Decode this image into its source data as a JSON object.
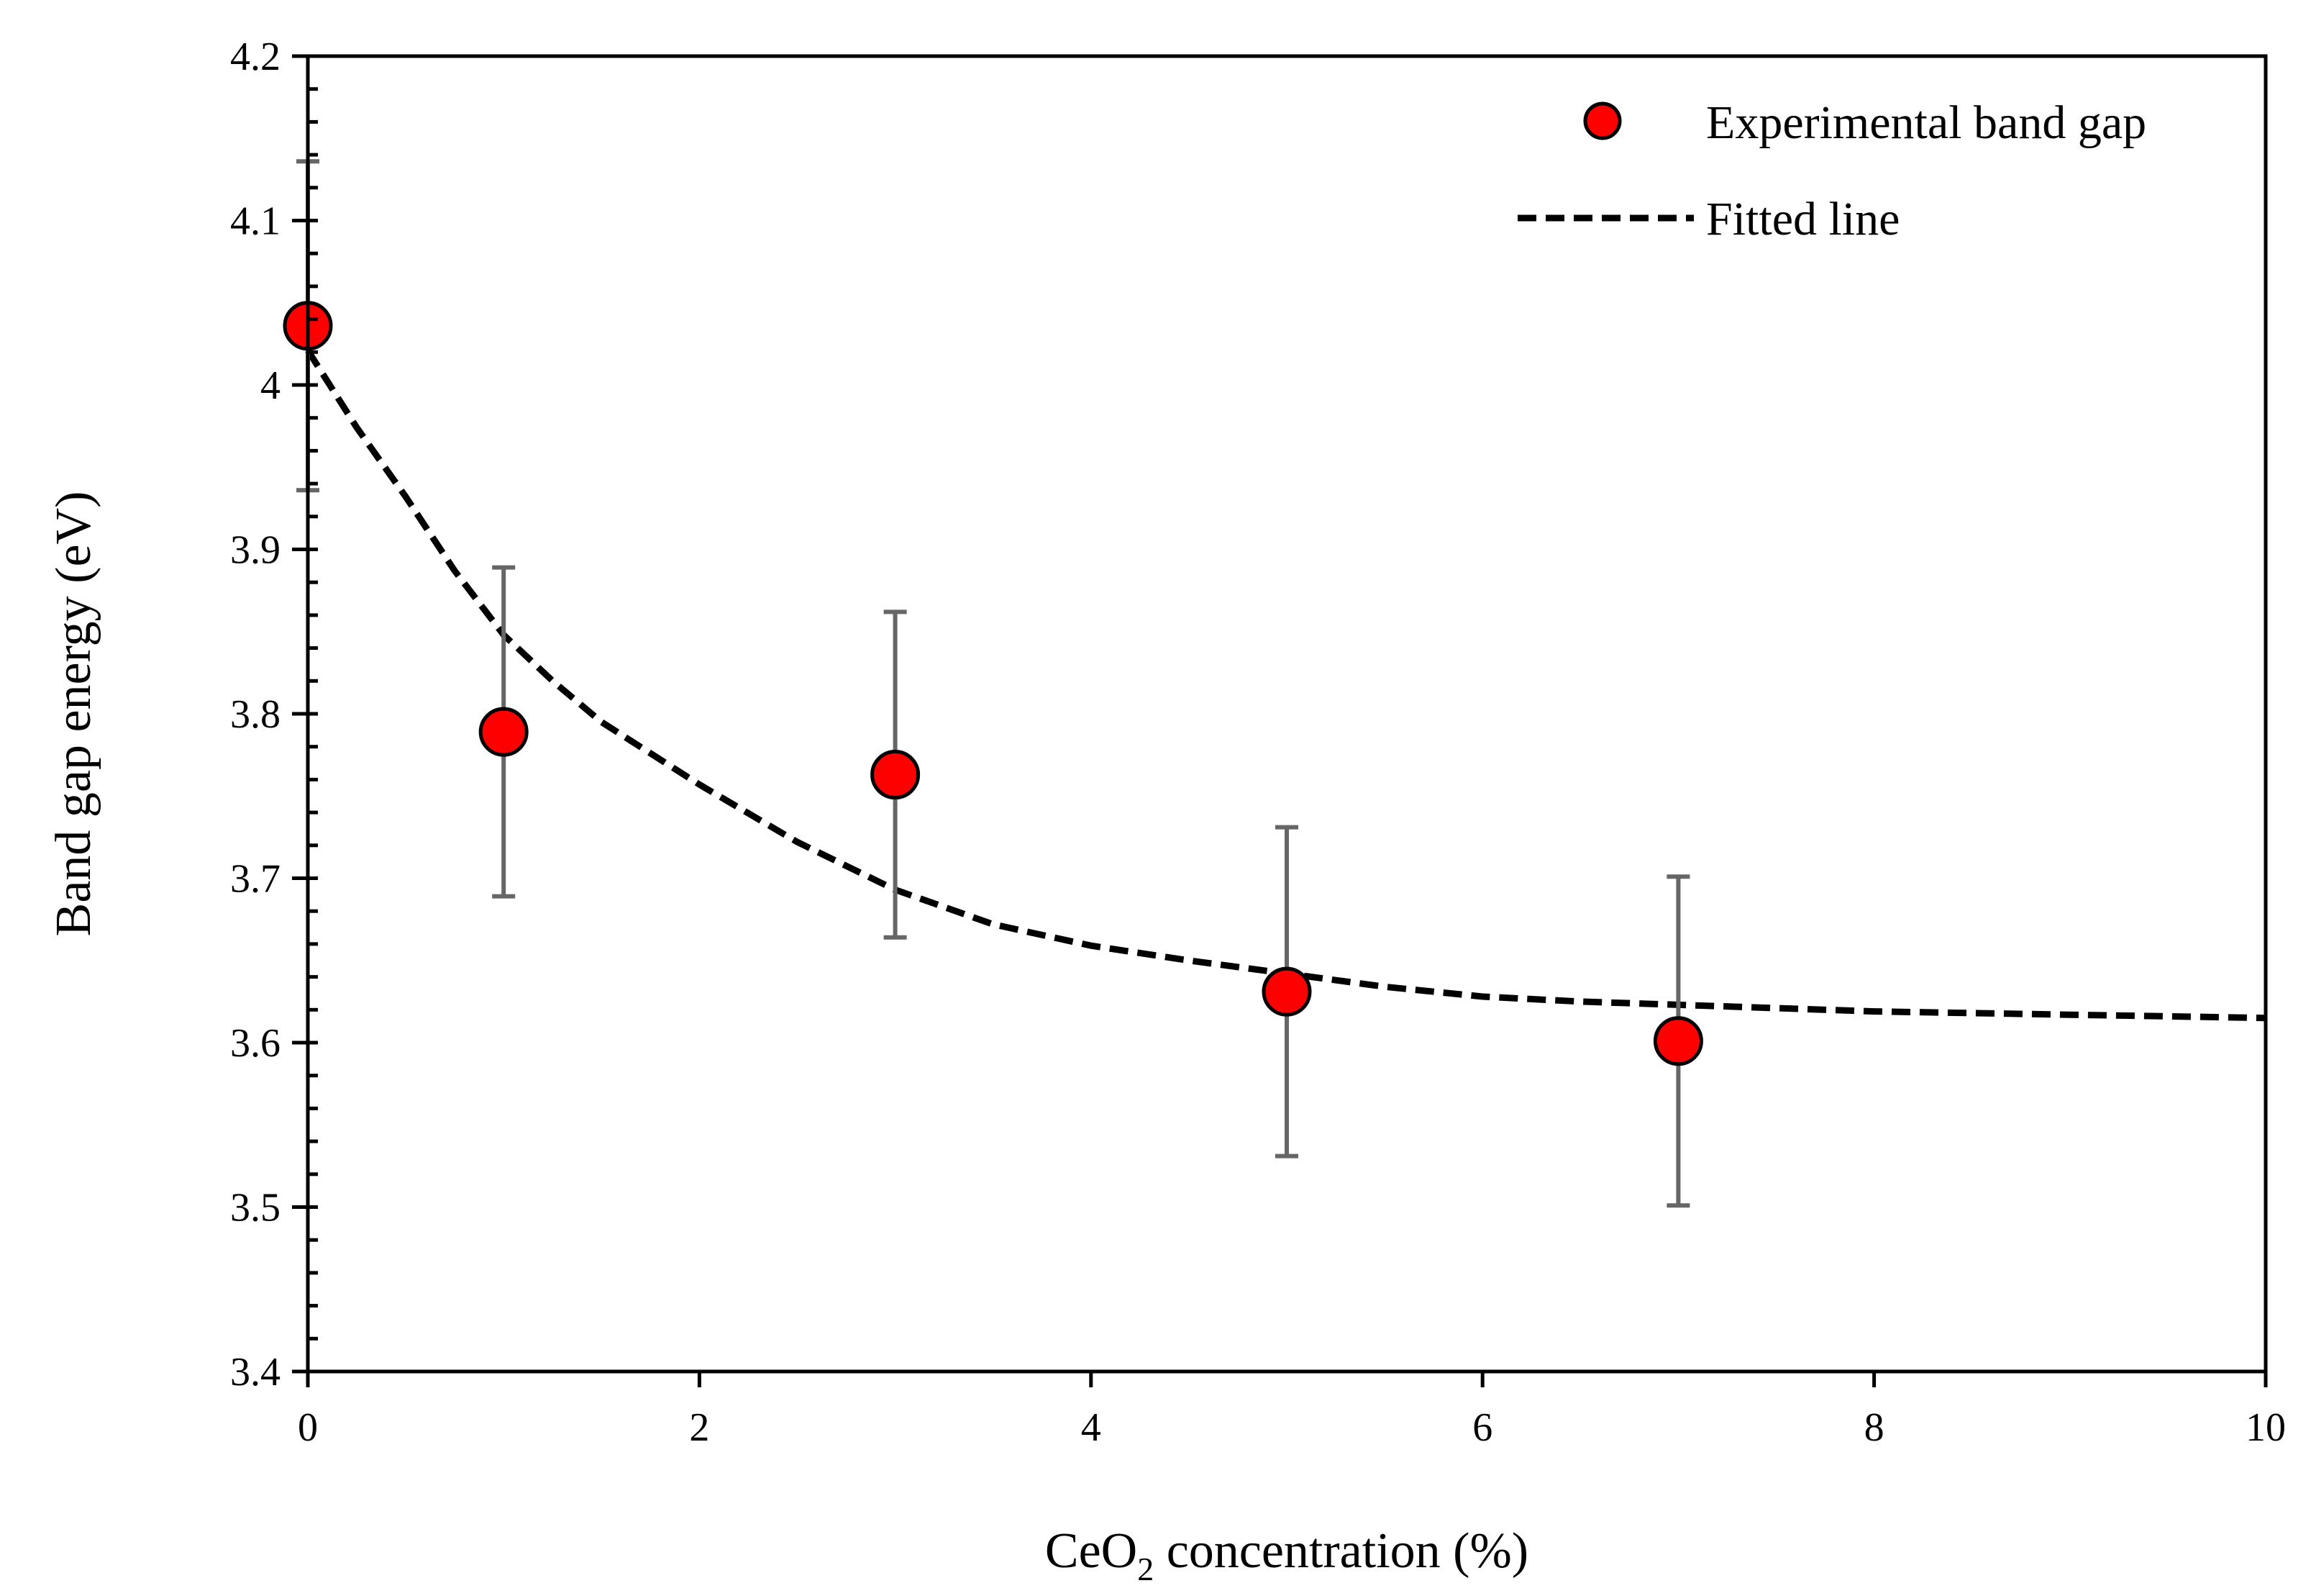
{
  "chart_data": {
    "type": "scatter",
    "title": "",
    "xlabel": {
      "prefix": "CeO",
      "subscript": "2",
      "suffix": " concentration (%)"
    },
    "ylabel": "Band gap energy (eV)",
    "xlim": [
      0,
      10
    ],
    "ylim": [
      3.4,
      4.2
    ],
    "grid": false,
    "x_ticks": [
      {
        "value": 0,
        "label": "0"
      },
      {
        "value": 2,
        "label": "2"
      },
      {
        "value": 4,
        "label": "4"
      },
      {
        "value": 6,
        "label": "6"
      },
      {
        "value": 8,
        "label": "8"
      },
      {
        "value": 10,
        "label": "10"
      }
    ],
    "y_ticks": [
      {
        "value": 3.4,
        "label": "3.4"
      },
      {
        "value": 3.5,
        "label": "3.5"
      },
      {
        "value": 3.6,
        "label": "3.6"
      },
      {
        "value": 3.7,
        "label": "3.7"
      },
      {
        "value": 3.8,
        "label": "3.8"
      },
      {
        "value": 3.9,
        "label": "3.9"
      },
      {
        "value": 4.0,
        "label": "4"
      },
      {
        "value": 4.1,
        "label": "4.1"
      },
      {
        "value": 4.2,
        "label": "4.2"
      }
    ],
    "y_minor_step": 0.02,
    "legend_position": "top-right",
    "series": [
      {
        "name": "Experimental band gap",
        "kind": "scatter",
        "marker": "circle",
        "color": "#ff0000",
        "edge_color": "#000000",
        "points": [
          {
            "x": 0,
            "y": 4.036,
            "err": 0.1
          },
          {
            "x": 1,
            "y": 3.789,
            "err": 0.1
          },
          {
            "x": 3,
            "y": 3.763,
            "err": 0.099
          },
          {
            "x": 5,
            "y": 3.631,
            "err": 0.1
          },
          {
            "x": 7,
            "y": 3.601,
            "err": 0.1
          }
        ],
        "error_bar_color": "#666666"
      },
      {
        "name": "Fitted line",
        "kind": "line",
        "style": "dashed",
        "color": "#000000",
        "x": [
          0,
          0.25,
          0.5,
          0.75,
          1,
          1.25,
          1.5,
          2,
          2.5,
          3,
          3.5,
          4,
          4.5,
          5,
          5.5,
          6,
          6.5,
          7,
          7.5,
          8,
          8.5,
          9,
          9.5,
          10
        ],
        "y": [
          4.021,
          3.974,
          3.932,
          3.887,
          3.848,
          3.82,
          3.795,
          3.757,
          3.722,
          3.693,
          3.672,
          3.659,
          3.65,
          3.642,
          3.634,
          3.628,
          3.625,
          3.623,
          3.621,
          3.619,
          3.618,
          3.617,
          3.616,
          3.615
        ]
      }
    ]
  }
}
